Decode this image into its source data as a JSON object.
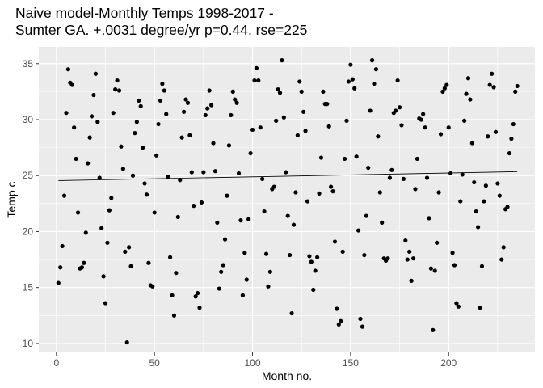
{
  "chart_data": {
    "type": "scatter",
    "title_lines": [
      "Naive model-Monthly Temps 1998-2017 -",
      "Sumter GA. +.0031 degree/yr p=0.44. rse=225"
    ],
    "xlabel": "Month no.",
    "ylabel": "Temp c",
    "xlim": [
      -9,
      244
    ],
    "ylim": [
      9.2,
      36.5
    ],
    "x_ticks": [
      0,
      50,
      100,
      150,
      200
    ],
    "y_ticks": [
      10,
      15,
      20,
      25,
      30,
      35
    ],
    "grid": true,
    "legend": "none",
    "panel_color": "#ebebeb",
    "grid_color": "#ffffff",
    "point_color": "#000000",
    "trend_line": {
      "x": [
        1,
        235
      ],
      "y": [
        24.55,
        25.35
      ]
    },
    "points": [
      [
        1,
        15.4
      ],
      [
        2,
        16.8
      ],
      [
        3,
        18.7
      ],
      [
        4,
        23.2
      ],
      [
        5,
        30.6
      ],
      [
        6,
        34.5
      ],
      [
        7,
        33.3
      ],
      [
        8,
        33.1
      ],
      [
        9,
        29.3
      ],
      [
        10,
        26.5
      ],
      [
        11,
        21.7
      ],
      [
        12,
        16.7
      ],
      [
        13,
        16.8
      ],
      [
        14,
        17.2
      ],
      [
        15,
        19.9
      ],
      [
        16,
        26.1
      ],
      [
        17,
        28.4
      ],
      [
        18,
        30.3
      ],
      [
        19,
        32.2
      ],
      [
        20,
        34.1
      ],
      [
        21,
        29.8
      ],
      [
        22,
        24.8
      ],
      [
        23,
        20.3
      ],
      [
        24,
        16.0
      ],
      [
        25,
        13.6
      ],
      [
        26,
        19.0
      ],
      [
        27,
        21.9
      ],
      [
        28,
        23.0
      ],
      [
        29,
        30.6
      ],
      [
        30,
        32.7
      ],
      [
        31,
        33.5
      ],
      [
        32,
        32.6
      ],
      [
        33,
        27.6
      ],
      [
        34,
        25.6
      ],
      [
        35,
        18.2
      ],
      [
        36,
        10.1
      ],
      [
        37,
        18.6
      ],
      [
        38,
        16.9
      ],
      [
        39,
        25.0
      ],
      [
        40,
        28.8
      ],
      [
        41,
        29.8
      ],
      [
        42,
        31.7
      ],
      [
        43,
        31.2
      ],
      [
        44,
        27.5
      ],
      [
        45,
        24.3
      ],
      [
        46,
        23.3
      ],
      [
        47,
        17.2
      ],
      [
        48,
        15.2
      ],
      [
        49,
        15.1
      ],
      [
        50,
        21.7
      ],
      [
        51,
        26.8
      ],
      [
        52,
        29.6
      ],
      [
        53,
        31.7
      ],
      [
        54,
        33.2
      ],
      [
        55,
        32.6
      ],
      [
        56,
        30.5
      ],
      [
        57,
        24.9
      ],
      [
        58,
        17.7
      ],
      [
        59,
        14.3
      ],
      [
        60,
        12.5
      ],
      [
        61,
        16.3
      ],
      [
        62,
        21.3
      ],
      [
        63,
        24.6
      ],
      [
        64,
        28.4
      ],
      [
        65,
        30.7
      ],
      [
        66,
        31.8
      ],
      [
        67,
        31.5
      ],
      [
        68,
        28.6
      ],
      [
        69,
        25.3
      ],
      [
        70,
        22.3
      ],
      [
        71,
        14.2
      ],
      [
        72,
        14.5
      ],
      [
        73,
        13.2
      ],
      [
        74,
        22.6
      ],
      [
        75,
        25.3
      ],
      [
        76,
        30.4
      ],
      [
        77,
        31.0
      ],
      [
        78,
        32.6
      ],
      [
        79,
        31.3
      ],
      [
        80,
        27.9
      ],
      [
        81,
        25.4
      ],
      [
        82,
        20.8
      ],
      [
        83,
        14.9
      ],
      [
        84,
        16.4
      ],
      [
        85,
        17.0
      ],
      [
        86,
        19.3
      ],
      [
        87,
        23.2
      ],
      [
        88,
        27.7
      ],
      [
        89,
        30.4
      ],
      [
        90,
        32.5
      ],
      [
        91,
        31.8
      ],
      [
        92,
        31.5
      ],
      [
        93,
        25.2
      ],
      [
        94,
        21.0
      ],
      [
        95,
        14.3
      ],
      [
        96,
        18.1
      ],
      [
        97,
        15.7
      ],
      [
        98,
        21.1
      ],
      [
        99,
        27.0
      ],
      [
        100,
        29.1
      ],
      [
        101,
        33.5
      ],
      [
        102,
        34.6
      ],
      [
        103,
        33.5
      ],
      [
        104,
        29.3
      ],
      [
        105,
        24.7
      ],
      [
        106,
        21.8
      ],
      [
        107,
        18.0
      ],
      [
        108,
        15.1
      ],
      [
        109,
        16.4
      ],
      [
        110,
        23.8
      ],
      [
        111,
        24.0
      ],
      [
        112,
        29.9
      ],
      [
        113,
        32.7
      ],
      [
        114,
        32.4
      ],
      [
        115,
        35.3
      ],
      [
        116,
        30.2
      ],
      [
        117,
        25.3
      ],
      [
        118,
        21.4
      ],
      [
        119,
        17.9
      ],
      [
        120,
        12.7
      ],
      [
        121,
        20.6
      ],
      [
        122,
        23.5
      ],
      [
        123,
        28.6
      ],
      [
        124,
        33.4
      ],
      [
        125,
        32.5
      ],
      [
        126,
        30.7
      ],
      [
        127,
        29.0
      ],
      [
        128,
        22.7
      ],
      [
        129,
        17.8
      ],
      [
        130,
        17.3
      ],
      [
        131,
        14.8
      ],
      [
        132,
        16.5
      ],
      [
        133,
        17.7
      ],
      [
        134,
        23.4
      ],
      [
        135,
        26.6
      ],
      [
        136,
        32.5
      ],
      [
        137,
        31.4
      ],
      [
        138,
        31.4
      ],
      [
        139,
        29.4
      ],
      [
        140,
        24.0
      ],
      [
        141,
        23.6
      ],
      [
        142,
        19.1
      ],
      [
        143,
        13.1
      ],
      [
        144,
        11.7
      ],
      [
        145,
        12.0
      ],
      [
        146,
        18.2
      ],
      [
        147,
        26.5
      ],
      [
        148,
        29.9
      ],
      [
        149,
        33.4
      ],
      [
        150,
        34.9
      ],
      [
        151,
        33.6
      ],
      [
        152,
        32.8
      ],
      [
        153,
        26.7
      ],
      [
        154,
        20.1
      ],
      [
        155,
        12.2
      ],
      [
        156,
        11.5
      ],
      [
        157,
        17.9
      ],
      [
        158,
        21.4
      ],
      [
        159,
        25.7
      ],
      [
        160,
        30.8
      ],
      [
        161,
        35.3
      ],
      [
        162,
        33.2
      ],
      [
        163,
        34.5
      ],
      [
        164,
        28.5
      ],
      [
        165,
        23.5
      ],
      [
        166,
        20.8
      ],
      [
        167,
        17.6
      ],
      [
        168,
        17.4
      ],
      [
        169,
        17.6
      ],
      [
        170,
        24.8
      ],
      [
        171,
        25.5
      ],
      [
        172,
        30.6
      ],
      [
        173,
        30.8
      ],
      [
        174,
        33.5
      ],
      [
        175,
        31.1
      ],
      [
        176,
        29.5
      ],
      [
        177,
        24.7
      ],
      [
        178,
        19.2
      ],
      [
        179,
        17.5
      ],
      [
        180,
        18.2
      ],
      [
        181,
        15.6
      ],
      [
        182,
        17.6
      ],
      [
        183,
        23.8
      ],
      [
        184,
        26.5
      ],
      [
        185,
        30.1
      ],
      [
        186,
        30.0
      ],
      [
        187,
        30.5
      ],
      [
        188,
        29.3
      ],
      [
        189,
        24.8
      ],
      [
        190,
        21.2
      ],
      [
        191,
        16.7
      ],
      [
        192,
        11.2
      ],
      [
        193,
        16.5
      ],
      [
        194,
        19.0
      ],
      [
        195,
        23.5
      ],
      [
        196,
        28.7
      ],
      [
        197,
        32.5
      ],
      [
        198,
        32.8
      ],
      [
        199,
        33.1
      ],
      [
        200,
        29.3
      ],
      [
        201,
        25.2
      ],
      [
        202,
        18.1
      ],
      [
        203,
        17.0
      ],
      [
        204,
        13.6
      ],
      [
        205,
        13.3
      ],
      [
        206,
        22.7
      ],
      [
        207,
        25.1
      ],
      [
        208,
        29.9
      ],
      [
        209,
        32.3
      ],
      [
        210,
        33.7
      ],
      [
        211,
        31.8
      ],
      [
        212,
        27.9
      ],
      [
        213,
        24.4
      ],
      [
        214,
        21.8
      ],
      [
        215,
        20.4
      ],
      [
        216,
        13.2
      ],
      [
        217,
        16.9
      ],
      [
        218,
        22.7
      ],
      [
        219,
        24.1
      ],
      [
        220,
        28.5
      ],
      [
        221,
        33.1
      ],
      [
        222,
        34.1
      ],
      [
        223,
        32.9
      ],
      [
        224,
        28.9
      ],
      [
        225,
        24.3
      ],
      [
        226,
        23.2
      ],
      [
        227,
        17.5
      ],
      [
        228,
        18.6
      ],
      [
        229,
        22.0
      ],
      [
        230,
        22.2
      ],
      [
        231,
        27.0
      ],
      [
        232,
        28.3
      ],
      [
        233,
        29.6
      ],
      [
        234,
        32.5
      ],
      [
        235,
        33.0
      ]
    ]
  }
}
